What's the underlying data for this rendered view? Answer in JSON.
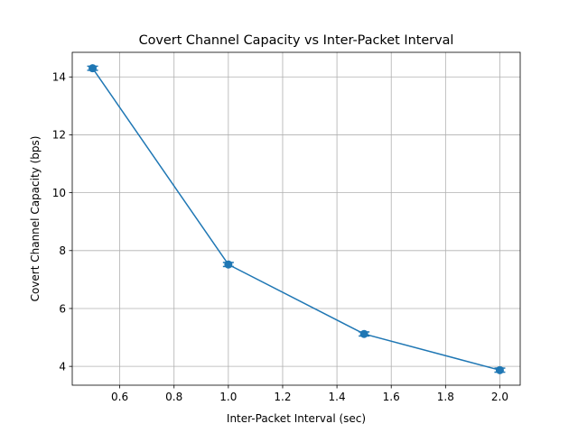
{
  "chart_data": {
    "type": "line",
    "title": "Covert Channel Capacity vs Inter-Packet Interval",
    "xlabel": "Inter-Packet Interval (sec)",
    "ylabel": "Covert Channel Capacity (bps)",
    "xlim": [
      0.425,
      2.075
    ],
    "ylim": [
      3.35,
      14.85
    ],
    "xticks": [
      0.6,
      0.8,
      1.0,
      1.2,
      1.4,
      1.6,
      1.8,
      2.0
    ],
    "xtick_labels": [
      "0.6",
      "0.8",
      "1.0",
      "1.2",
      "1.4",
      "1.6",
      "1.8",
      "2.0"
    ],
    "yticks": [
      4,
      6,
      8,
      10,
      12,
      14
    ],
    "ytick_labels": [
      "4",
      "6",
      "8",
      "10",
      "12",
      "14"
    ],
    "grid": true,
    "series": [
      {
        "x": [
          0.5,
          1.0,
          1.5,
          2.0
        ],
        "y": [
          14.3,
          7.52,
          5.12,
          3.87
        ],
        "yerr": [
          0.07,
          0.07,
          0.07,
          0.07
        ],
        "color": "#1f77b4",
        "marker": "circle"
      }
    ]
  }
}
